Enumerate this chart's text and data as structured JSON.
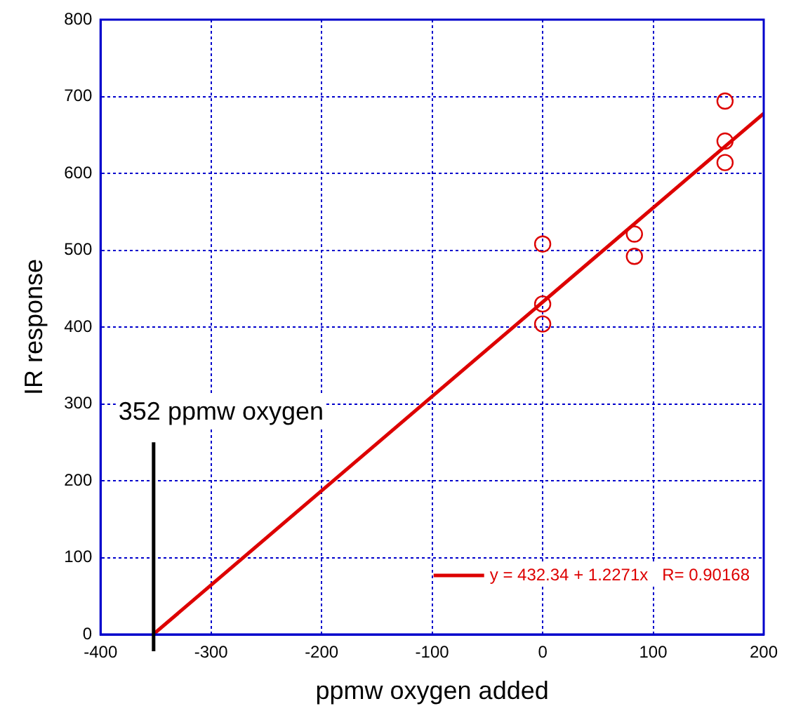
{
  "chart_data": {
    "type": "scatter",
    "xlabel": "ppmw oxygen added",
    "ylabel": "IR response",
    "xlim": [
      -400,
      200
    ],
    "xticks": [
      -400,
      -300,
      -200,
      -100,
      0,
      100,
      200
    ],
    "ylim": [
      0,
      800
    ],
    "yticks": [
      0,
      100,
      200,
      300,
      400,
      500,
      600,
      700,
      800
    ],
    "grid": true,
    "legend": "bottom right",
    "marker": "circle",
    "series": [
      {
        "color": "#dd0000",
        "x": [
          0,
          0,
          0,
          83,
          83,
          165,
          165,
          165
        ],
        "values": [
          508,
          430,
          404,
          521,
          492,
          694,
          642,
          614
        ]
      },
      {
        "type": "line",
        "name": "y = 432.34 + 1.2271x   R= 0.90168",
        "color": "#dd0000",
        "line_style": "solid",
        "marker": "none",
        "x": [
          -352.3,
          200
        ],
        "values": [
          0,
          678
        ]
      }
    ],
    "ref_lines": [
      {
        "axis": "x",
        "value": -352,
        "label": "352 ppmw oxygen",
        "color": "#000000",
        "line_style": "solid"
      }
    ]
  }
}
